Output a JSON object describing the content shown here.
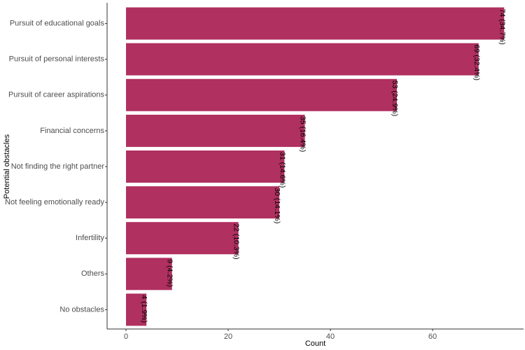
{
  "chart_data": {
    "type": "bar",
    "orientation": "horizontal",
    "categories": [
      "Pursuit of educational goals",
      "Pursuit of personal interests",
      "Pursuit of career aspirations",
      "Financial concerns",
      "Not finding the right partner",
      "Not feeling emotionally ready",
      "Infertility",
      "Others",
      "No obstacles"
    ],
    "values": [
      74,
      69,
      53,
      35,
      31,
      30,
      22,
      9,
      4
    ],
    "data_labels": [
      "74 (34.7%)",
      "69 (32.4%)",
      "53 (24.9%)",
      "35 (16.4%)",
      "31 (14.6%)",
      "30 (14.1%)",
      "22 (10.3%)",
      "9 (4.2%)",
      "4 (1.9%)"
    ],
    "xlabel": "Count",
    "ylabel": "Potential obstacles",
    "xlim": [
      -3.7,
      77.8
    ],
    "xticks": [
      0,
      20,
      40,
      60
    ],
    "bar_color": "#b03060",
    "grid": false,
    "legend": "none"
  }
}
